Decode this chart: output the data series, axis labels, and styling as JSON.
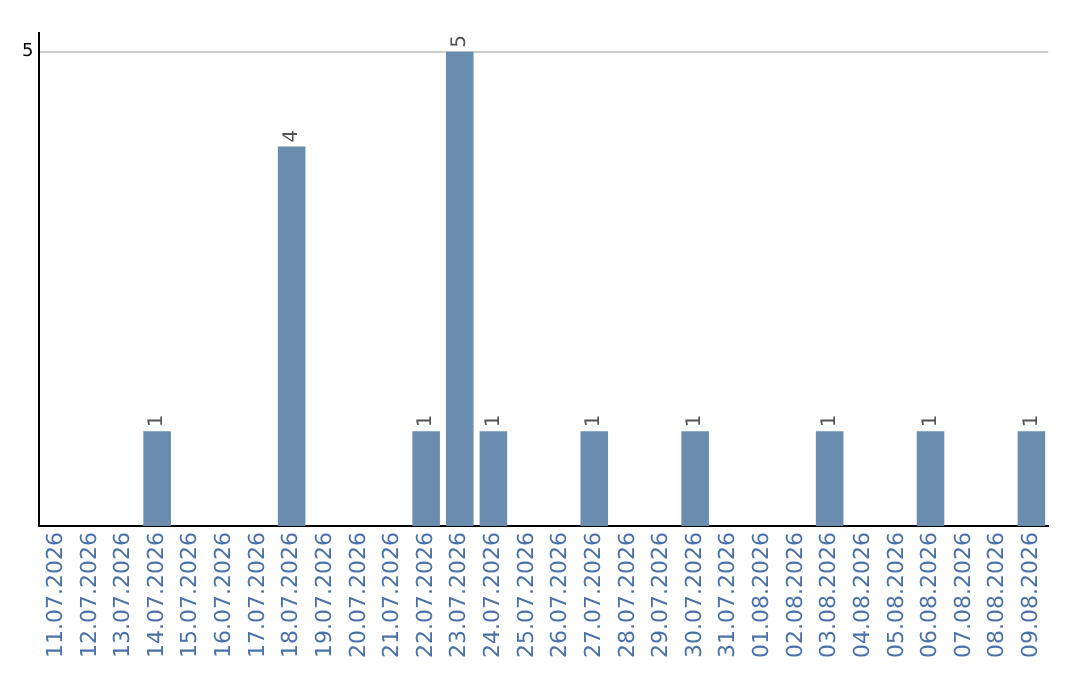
{
  "chart_data": {
    "type": "bar",
    "categories": [
      "11.07.2026",
      "12.07.2026",
      "13.07.2026",
      "14.07.2026",
      "15.07.2026",
      "16.07.2026",
      "17.07.2026",
      "18.07.2026",
      "19.07.2026",
      "20.07.2026",
      "21.07.2026",
      "22.07.2026",
      "23.07.2026",
      "24.07.2026",
      "25.07.2026",
      "26.07.2026",
      "27.07.2026",
      "28.07.2026",
      "29.07.2026",
      "30.07.2026",
      "31.07.2026",
      "01.08.2026",
      "02.08.2026",
      "03.08.2026",
      "04.08.2026",
      "05.08.2026",
      "06.08.2026",
      "07.08.2026",
      "08.08.2026",
      "09.08.2026"
    ],
    "values": [
      null,
      null,
      null,
      1,
      null,
      null,
      null,
      4,
      null,
      null,
      null,
      1,
      5,
      1,
      null,
      null,
      1,
      null,
      null,
      1,
      null,
      null,
      null,
      1,
      null,
      null,
      1,
      null,
      null,
      1
    ],
    "color": "#6a8caf",
    "ylim": [
      0,
      5.2
    ],
    "yticks": [
      5
    ],
    "grid": "y",
    "data_labels": true
  }
}
